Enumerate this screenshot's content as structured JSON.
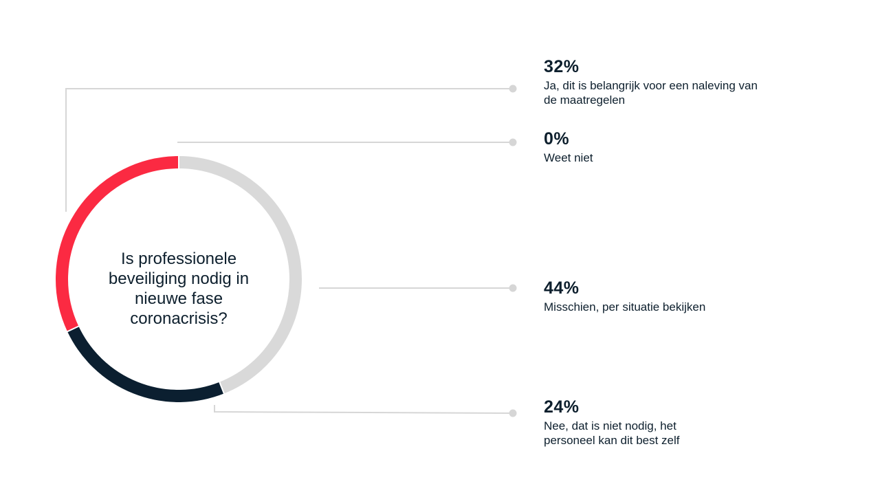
{
  "chart_data": {
    "type": "pie",
    "donut": true,
    "center_text": "Is professionele beveiliging nodig in nieuwe fase coronacrisis?",
    "slices": [
      {
        "label": "Ja, dit is belangrijk voor een naleving van de maatregelen",
        "value": 32,
        "display": "32%",
        "color": "#fb2a42"
      },
      {
        "label": "Weet niet",
        "value": 0,
        "display": "0%",
        "color": "#0d1f2d"
      },
      {
        "label": "Misschien, per situatie bekijken",
        "value": 44,
        "display": "44%",
        "color": "#d9d9d9"
      },
      {
        "label": "Nee, dat is niet nodig, het personeel kan dit best zelf",
        "value": 24,
        "display": "24%",
        "color": "#0b1f30"
      }
    ]
  }
}
